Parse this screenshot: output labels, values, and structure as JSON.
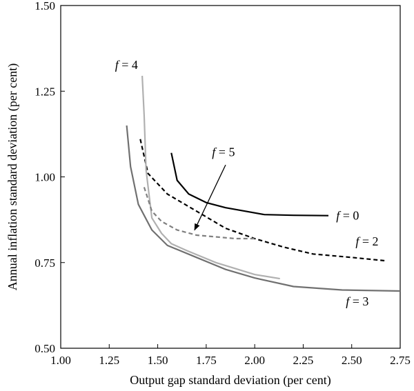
{
  "chart_data": {
    "type": "line",
    "title": "",
    "xlabel": "Output gap standard deviation (per cent)",
    "ylabel": "Annual inflation standard deviation (per cent)",
    "xlim": [
      1.0,
      2.75
    ],
    "ylim": [
      0.5,
      1.5
    ],
    "xticks": [
      "1.00",
      "1.25",
      "1.50",
      "1.75",
      "2.00",
      "2.25",
      "2.50",
      "2.75"
    ],
    "yticks": [
      "0.50",
      "0.75",
      "1.00",
      "1.25",
      "1.50"
    ],
    "grid": false,
    "legend": "none",
    "series": [
      {
        "name": "f = 0",
        "style": "solid",
        "color": "#000000",
        "x": [
          1.57,
          1.6,
          1.66,
          1.75,
          1.85,
          1.95,
          2.05,
          2.2,
          2.38
        ],
        "y": [
          1.07,
          0.99,
          0.95,
          0.925,
          0.91,
          0.9,
          0.89,
          0.888,
          0.887
        ]
      },
      {
        "name": "f = 2",
        "style": "dashed",
        "color": "#000000",
        "x": [
          1.41,
          1.45,
          1.55,
          1.7,
          1.85,
          2.0,
          2.15,
          2.3,
          2.5,
          2.68
        ],
        "y": [
          1.11,
          1.01,
          0.95,
          0.9,
          0.85,
          0.82,
          0.795,
          0.775,
          0.765,
          0.755
        ]
      },
      {
        "name": "f = 3",
        "style": "solid",
        "color": "#707070",
        "x": [
          1.34,
          1.36,
          1.4,
          1.47,
          1.55,
          1.7,
          1.85,
          2.0,
          2.2,
          2.45,
          2.75
        ],
        "y": [
          1.15,
          1.03,
          0.92,
          0.845,
          0.8,
          0.765,
          0.73,
          0.705,
          0.68,
          0.67,
          0.667
        ]
      },
      {
        "name": "f = 4",
        "style": "solid",
        "color": "#b0b0b0",
        "x": [
          1.42,
          1.43,
          1.44,
          1.47,
          1.52,
          1.57,
          1.65,
          1.8,
          2.0,
          2.13
        ],
        "y": [
          1.295,
          1.18,
          1.02,
          0.88,
          0.835,
          0.805,
          0.785,
          0.75,
          0.715,
          0.703
        ]
      },
      {
        "name": "f = 5",
        "style": "dashed",
        "color": "#808080",
        "x": [
          1.43,
          1.47,
          1.52,
          1.6,
          1.7,
          1.8,
          1.9,
          2.0
        ],
        "y": [
          0.97,
          0.9,
          0.87,
          0.845,
          0.83,
          0.825,
          0.82,
          0.82
        ]
      }
    ],
    "annotations": [
      {
        "var": "f",
        "text": " = 0",
        "x": 2.42,
        "y": 0.875
      },
      {
        "var": "f",
        "text": " = 2",
        "x": 2.52,
        "y": 0.8
      },
      {
        "var": "f",
        "text": " = 3",
        "x": 2.47,
        "y": 0.625
      },
      {
        "var": "f",
        "text": " = 4",
        "x": 1.28,
        "y": 1.315
      },
      {
        "var": "f",
        "text": " = 5",
        "x": 1.78,
        "y": 1.06
      }
    ],
    "arrow": {
      "from": [
        1.85,
        1.035
      ],
      "to": [
        1.69,
        0.845
      ]
    }
  }
}
